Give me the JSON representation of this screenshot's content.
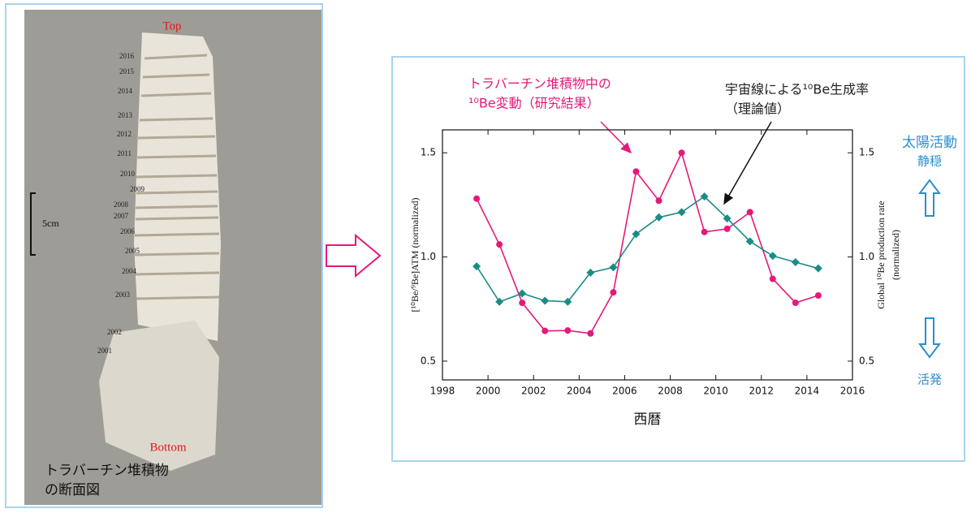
{
  "photo": {
    "top": "Top",
    "bottom": "Bottom",
    "scale": "5cm",
    "years": [
      "2016",
      "2015",
      "2014",
      "2013",
      "2012",
      "2011",
      "2010",
      "2009",
      "2008",
      "2007",
      "2006",
      "2005",
      "2004",
      "2003",
      "2002",
      "2001"
    ],
    "caption": [
      "トラバーチン堆積物",
      "の断面図"
    ]
  },
  "chart_data": {
    "type": "line",
    "x": [
      1999.5,
      2000.5,
      2001.5,
      2002.5,
      2003.5,
      2004.5,
      2005.5,
      2006.5,
      2007.5,
      2008.5,
      2009.5,
      2010.5,
      2011.5,
      2012.5,
      2013.5,
      2014.5
    ],
    "series": [
      {
        "color": "#e5197a",
        "marker": "circle",
        "values": [
          1.28,
          1.06,
          0.78,
          0.645,
          0.647,
          0.633,
          0.83,
          1.41,
          1.27,
          1.5,
          1.12,
          1.135,
          1.215,
          0.895,
          0.78,
          0.815
        ]
      },
      {
        "color": "#1a8c86",
        "marker": "diamond",
        "axis": "y2",
        "values": [
          0.955,
          0.785,
          0.825,
          0.79,
          0.785,
          0.925,
          0.95,
          1.11,
          1.19,
          1.215,
          1.29,
          1.185,
          1.075,
          1.005,
          0.975,
          0.945
        ]
      }
    ],
    "xlim": [
      1998,
      2016
    ],
    "xticks": [
      1998,
      2000,
      2002,
      2004,
      2006,
      2008,
      2010,
      2012,
      2014,
      2016
    ],
    "ylim": [
      0.41,
      1.61
    ],
    "yticks": [
      0.5,
      {
        "value": 1,
        "label": "1.0"
      },
      1.5
    ],
    "y2lim": [
      0.41,
      1.61
    ],
    "y2ticks": [
      0.5,
      {
        "value": 1,
        "label": "1.0"
      },
      1.5
    ],
    "x_label": "西暦",
    "y_label": "[¹⁰Be/⁹Be]ATM (normalized)",
    "y2_label": [
      "Global ¹⁰Be production rate",
      "(normalized)"
    ],
    "annotations": [
      {
        "lines": [
          "トラバーチン堆積物中の",
          "¹⁰Be変動（研究結果）"
        ],
        "color": "#e5197a"
      },
      {
        "lines": [
          "宇宙線による¹⁰Be生成率",
          "（理論値）"
        ],
        "color": "#222222"
      }
    ],
    "side": {
      "title": "太陽活動",
      "quiet": "静穏",
      "active": "活発",
      "color": "#2a8fd0"
    }
  }
}
